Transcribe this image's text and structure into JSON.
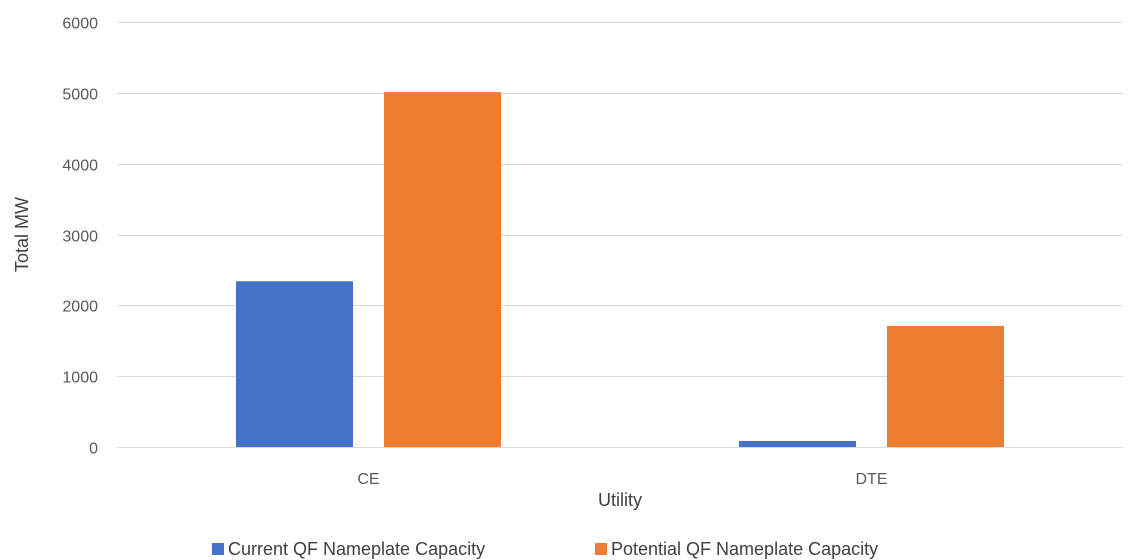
{
  "chart_data": {
    "type": "bar",
    "categories": [
      "CE",
      "DTE"
    ],
    "series": [
      {
        "name": "Current QF Nameplate Capacity",
        "values": [
          2340,
          85
        ],
        "color": "#4472C4"
      },
      {
        "name": "Potential QF Nameplate Capacity",
        "values": [
          5010,
          1710
        ],
        "color": "#ED7D31"
      }
    ],
    "xlabel": "Utility",
    "ylabel": "Total MW",
    "ylim": [
      0,
      6000
    ],
    "yticks": [
      0,
      1000,
      2000,
      3000,
      4000,
      5000,
      6000
    ],
    "grid": true,
    "legend_position": "bottom"
  }
}
